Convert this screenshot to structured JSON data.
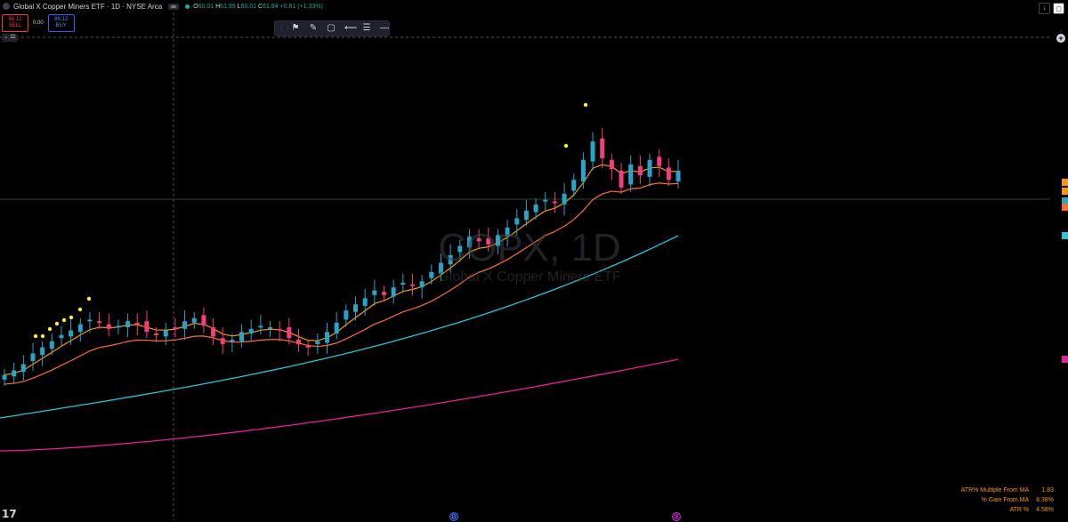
{
  "header": {
    "title": "Global X Copper Miners ETF · 1D · NYSE Arca",
    "ohlc": {
      "o_label": "O",
      "o_value": "60.01",
      "h_label": "H",
      "h_value": "61.99",
      "l_label": "L",
      "l_value": "60.01",
      "c_label": "C",
      "c_value": "61.84",
      "change": "+0.81 (+1.33%)"
    }
  },
  "trade": {
    "sell_price": "86.12",
    "sell_label": "SELL",
    "spread": "0.00",
    "buy_price": "86.12",
    "buy_label": "BUY"
  },
  "indicators_toggle": {
    "count": "11",
    "icon": "chevron-down-icon"
  },
  "drawing_toolbar": [
    {
      "name": "grip-icon",
      "glyph": "⋮⋮"
    },
    {
      "name": "flag-icon",
      "glyph": "⚑"
    },
    {
      "name": "pencil-brush-icon",
      "glyph": "✎"
    },
    {
      "name": "rectangle-icon",
      "glyph": "▢"
    },
    {
      "name": "line-icon",
      "glyph": "⟵"
    },
    {
      "name": "text-lines-icon",
      "glyph": "☰"
    },
    {
      "name": "horizontal-line-icon",
      "glyph": "―"
    }
  ],
  "watermark": {
    "symbol": "COPX, 1D",
    "name": "Global X Copper Miners ETF"
  },
  "stats": [
    {
      "label": "ATR% Multiple From MA",
      "value": "1.83"
    },
    {
      "label": "% Gain From MA",
      "value": "8.38%"
    },
    {
      "label": "ATR %",
      "value": "4.58%"
    }
  ],
  "events": {
    "dividend": "D",
    "split": "S"
  },
  "colors": {
    "up": "#26a5c9",
    "down": "#f23e7a",
    "ema_fast": "#ff9800",
    "ema_slow": "#ff6d2e",
    "ma_mid": "#26c6da",
    "ma_long": "#e91e9b",
    "dots": "#ffeb3b",
    "price_line": "#1e4d2b"
  },
  "chart_data": {
    "type": "candlestick",
    "price_axis_labels": "not legible",
    "candles_close_trend": [
      52.8,
      53.1,
      53.5,
      54.2,
      54.6,
      55.0,
      55.4,
      55.7,
      56.1,
      56.4,
      56.2,
      55.8,
      56.0,
      56.3,
      56.1,
      55.6,
      55.4,
      55.7,
      55.9,
      56.3,
      56.5,
      56.0,
      55.3,
      54.8,
      55.1,
      55.6,
      55.8,
      56.0,
      55.9,
      55.7,
      55.2,
      54.8,
      54.6,
      55.0,
      55.6,
      56.2,
      57.0,
      57.4,
      57.8,
      58.3,
      58.0,
      58.5,
      58.8,
      58.6,
      58.9,
      59.5,
      60.1,
      60.6,
      61.2,
      61.8,
      61.5,
      61.3,
      61.9,
      62.4,
      63.0,
      63.5,
      63.9,
      64.2,
      64.0,
      64.6,
      65.5,
      66.8,
      68.0,
      66.9,
      66.2,
      65.0,
      66.5,
      65.8,
      66.8,
      66.4,
      65.5,
      66.1
    ]
  }
}
